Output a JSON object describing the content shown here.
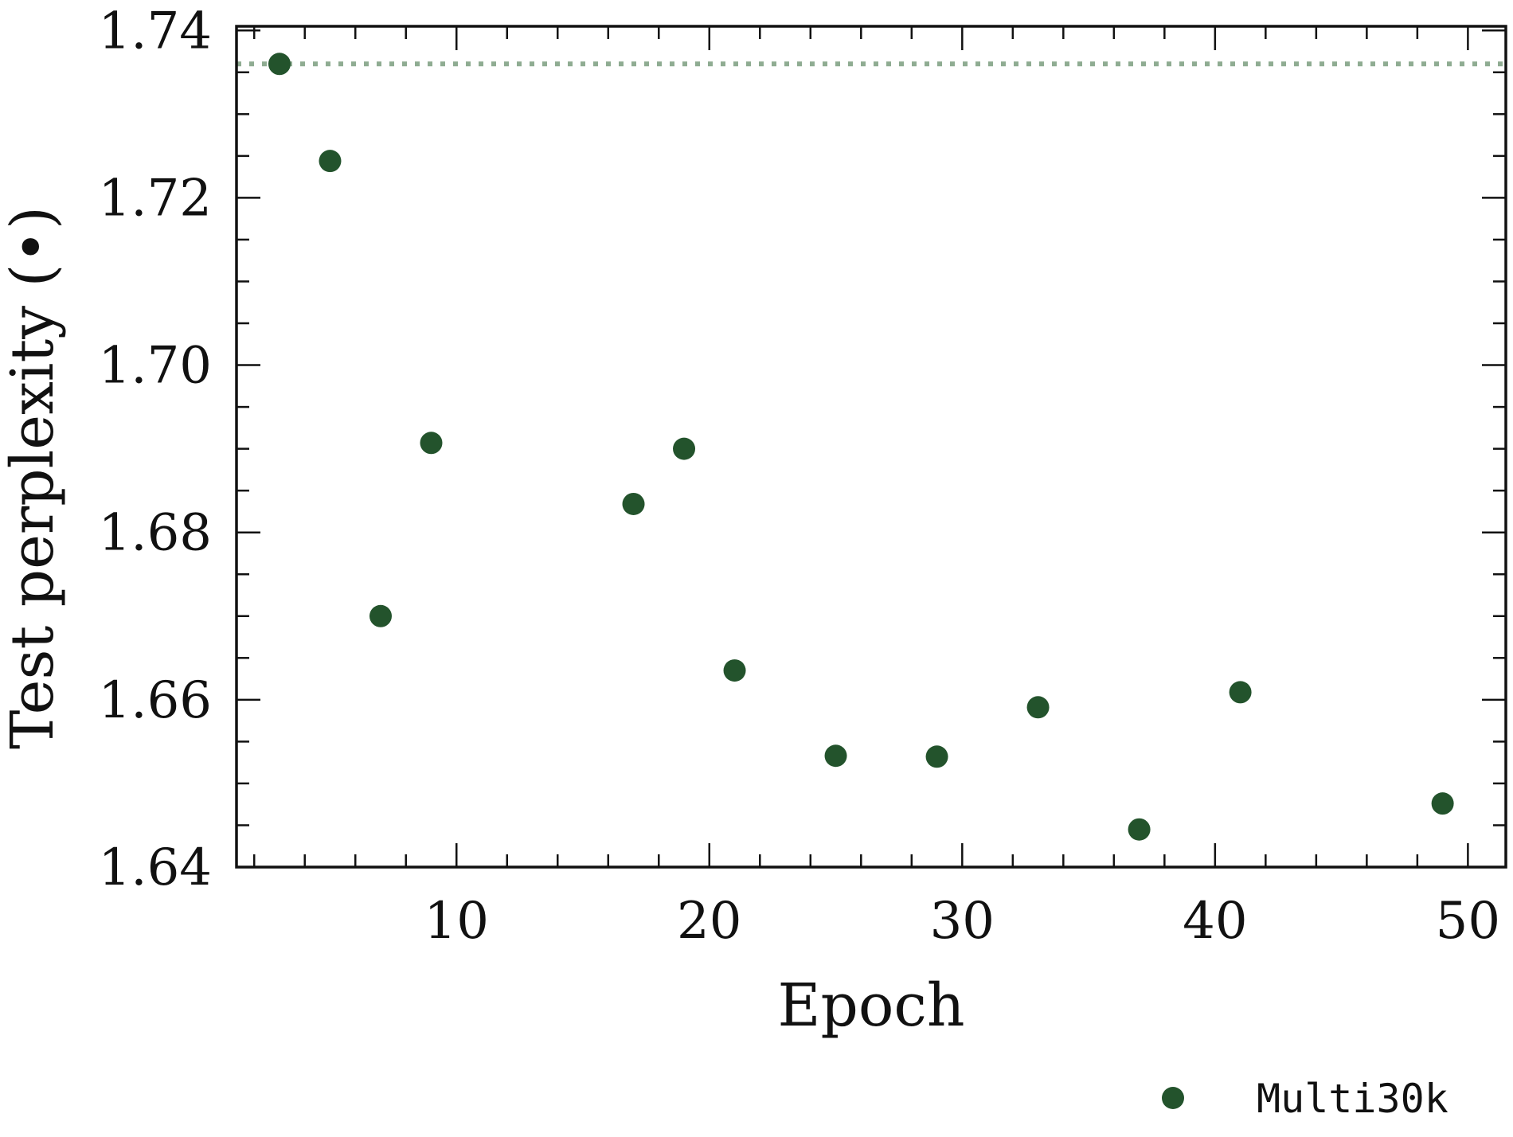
{
  "chart_data": {
    "type": "scatter",
    "xlabel": "Epoch",
    "ylabel": "Test perplexity (•)",
    "xlim": [
      1.3,
      51.5
    ],
    "ylim": [
      1.64,
      1.7405
    ],
    "xticks": [
      10,
      20,
      30,
      40,
      50
    ],
    "yticks": [
      1.64,
      1.66,
      1.68,
      1.7,
      1.72,
      1.74
    ],
    "xtick_labels": [
      "10",
      "20",
      "30",
      "40",
      "50"
    ],
    "ytick_labels": [
      "1.64",
      "1.66",
      "1.68",
      "1.70",
      "1.72",
      "1.74"
    ],
    "x_minor_step": 2,
    "y_minor_step": 0.005,
    "grid": false,
    "legend_position": "below-right",
    "reference_line": {
      "y": 1.736,
      "style": "dotted",
      "color": "#8fac92"
    },
    "series": [
      {
        "name": "Multi30k",
        "color": "#23532c",
        "x": [
          3,
          5,
          7,
          9,
          17,
          19,
          21,
          25,
          29,
          33,
          37,
          41,
          49
        ],
        "y": [
          1.736,
          1.7244,
          1.67,
          1.6907,
          1.6834,
          1.69,
          1.6635,
          1.6533,
          1.6532,
          1.6591,
          1.6445,
          1.6609,
          1.6476
        ]
      }
    ]
  }
}
